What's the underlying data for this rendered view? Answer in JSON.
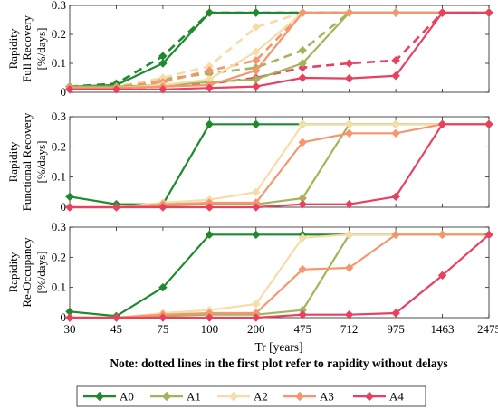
{
  "chart_data": {
    "type": "line",
    "categories": [
      "30",
      "45",
      "75",
      "100",
      "200",
      "475",
      "712",
      "975",
      "1463",
      "2475"
    ],
    "xlabel": "Tr [years]",
    "note": "Note: dotted lines in the first plot refer to rapidity without delays",
    "legend_position": "bottom",
    "colors": {
      "A0": "#1e8a2e",
      "A1": "#a5b45a",
      "A2": "#f8dca8",
      "A3": "#f6966e",
      "A4": "#e8405e"
    },
    "panels": [
      {
        "ylabel_lines": [
          "Rapidity",
          "Full Recovery",
          "[%/days]"
        ],
        "ylim": [
          0,
          0.3
        ],
        "yticks": [
          "0",
          "0.1",
          "0.2",
          "0.3"
        ],
        "series": [
          {
            "name": "A0",
            "style": "solid",
            "values": [
              0.02,
              0.025,
              0.1,
              0.275,
              0.275,
              0.275,
              0.275,
              0.275,
              0.275,
              0.275
            ]
          },
          {
            "name": "A1",
            "style": "solid",
            "values": [
              0.02,
              0.02,
              0.025,
              0.035,
              0.045,
              0.1,
              0.275,
              0.275,
              0.275,
              0.275
            ]
          },
          {
            "name": "A2",
            "style": "solid",
            "values": [
              0.015,
              0.015,
              0.025,
              0.045,
              0.14,
              0.275,
              0.275,
              0.275,
              0.275,
              0.275
            ]
          },
          {
            "name": "A3",
            "style": "solid",
            "values": [
              0.015,
              0.015,
              0.02,
              0.025,
              0.075,
              0.275,
              0.275,
              0.275,
              0.275,
              0.275
            ]
          },
          {
            "name": "A4",
            "style": "solid",
            "values": [
              0.01,
              0.01,
              0.01,
              0.015,
              0.02,
              0.05,
              0.048,
              0.057,
              0.275,
              0.275
            ]
          },
          {
            "name": "A0",
            "style": "dashed",
            "values": [
              0.02,
              0.03,
              0.125,
              0.275,
              0.275,
              0.275,
              0.275,
              0.275,
              0.275,
              0.275
            ]
          },
          {
            "name": "A1",
            "style": "dashed",
            "values": [
              0.02,
              0.02,
              0.045,
              0.065,
              0.085,
              0.145,
              0.275,
              0.275,
              0.275,
              0.275
            ]
          },
          {
            "name": "A2",
            "style": "dashed",
            "values": [
              0.015,
              0.02,
              0.05,
              0.09,
              0.225,
              0.275,
              0.275,
              0.275,
              0.275,
              0.275
            ]
          },
          {
            "name": "A3",
            "style": "dashed",
            "values": [
              0.015,
              0.02,
              0.035,
              0.075,
              0.11,
              0.275,
              0.275,
              0.275,
              0.275,
              0.275
            ]
          },
          {
            "name": "A4",
            "style": "dashed",
            "values": [
              0.01,
              0.015,
              0.02,
              0.03,
              0.05,
              0.085,
              0.1,
              0.11,
              0.275,
              0.275
            ]
          }
        ]
      },
      {
        "ylabel_lines": [
          "Rapidity",
          "Functional Recovery",
          "[%/days]"
        ],
        "ylim": [
          0,
          0.3
        ],
        "yticks": [
          "0",
          "0.1",
          "0.2",
          "0.3"
        ],
        "series": [
          {
            "name": "A0",
            "style": "solid",
            "values": [
              0.035,
              0.01,
              0.01,
              0.275,
              0.275,
              0.275,
              0.275,
              0.275,
              0.275,
              0.275
            ]
          },
          {
            "name": "A1",
            "style": "solid",
            "values": [
              0.0,
              0.0,
              0.005,
              0.01,
              0.01,
              0.03,
              0.275,
              0.275,
              0.275,
              0.275
            ]
          },
          {
            "name": "A2",
            "style": "solid",
            "values": [
              0.0,
              0.0,
              0.015,
              0.025,
              0.05,
              0.275,
              0.275,
              0.275,
              0.275,
              0.275
            ]
          },
          {
            "name": "A3",
            "style": "solid",
            "values": [
              0.0,
              0.0,
              0.01,
              0.015,
              0.015,
              0.215,
              0.245,
              0.245,
              0.275,
              0.275
            ]
          },
          {
            "name": "A4",
            "style": "solid",
            "values": [
              0.0,
              0.0,
              0.0,
              0.0,
              0.0,
              0.01,
              0.01,
              0.035,
              0.275,
              0.275
            ]
          }
        ]
      },
      {
        "ylabel_lines": [
          "Rapidity",
          "Re-Occupancy",
          "[%/days]"
        ],
        "ylim": [
          0,
          0.3
        ],
        "yticks": [
          "0",
          "0.1",
          "0.2",
          "0.3"
        ],
        "series": [
          {
            "name": "A0",
            "style": "solid",
            "values": [
              0.02,
              0.005,
              0.1,
              0.275,
              0.275,
              0.275,
              0.275,
              0.275,
              0.275,
              0.275
            ]
          },
          {
            "name": "A1",
            "style": "solid",
            "values": [
              0.0,
              0.0,
              0.005,
              0.01,
              0.01,
              0.025,
              0.275,
              0.275,
              0.275,
              0.275
            ]
          },
          {
            "name": "A2",
            "style": "solid",
            "values": [
              0.0,
              0.0,
              0.015,
              0.025,
              0.045,
              0.265,
              0.275,
              0.275,
              0.275,
              0.275
            ]
          },
          {
            "name": "A3",
            "style": "solid",
            "values": [
              0.0,
              0.0,
              0.01,
              0.015,
              0.015,
              0.16,
              0.165,
              0.275,
              0.275,
              0.275
            ]
          },
          {
            "name": "A4",
            "style": "solid",
            "values": [
              0.0,
              0.0,
              0.0,
              0.0,
              0.0,
              0.01,
              0.01,
              0.015,
              0.14,
              0.275
            ]
          }
        ]
      }
    ],
    "legend": [
      "A0",
      "A1",
      "A2",
      "A3",
      "A4"
    ]
  }
}
